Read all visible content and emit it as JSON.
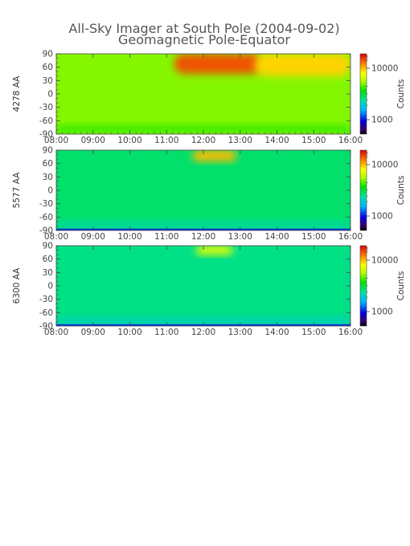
{
  "chart_data": {
    "type": "heatmap",
    "title": "All-Sky Imager at South Pole (2004-09-02)",
    "subtitle": "Geomagnetic Pole-Equator",
    "x_ticks": [
      "08:00",
      "09:00",
      "10:00",
      "11:00",
      "12:00",
      "13:00",
      "14:00",
      "15:00",
      "16:00"
    ],
    "x_range_hours": [
      8,
      16
    ],
    "y_ticks": [
      90,
      60,
      30,
      0,
      -30,
      -60,
      -90
    ],
    "y_range": [
      -90,
      90
    ],
    "colorbar_label": "Counts",
    "colorbar_ticks": [
      "10000",
      "1000"
    ],
    "colorbar_scale": "log",
    "panels": [
      {
        "ylabel": "4278 AA",
        "background_level": 0.63,
        "features": [
          {
            "t_start": 11.2,
            "t_end": 13.6,
            "lat_min": 45,
            "lat_max": 90,
            "level": 0.92
          },
          {
            "t_start": 13.4,
            "t_end": 16.0,
            "lat_min": 40,
            "lat_max": 90,
            "level": 0.8
          }
        ]
      },
      {
        "ylabel": "5577 AA",
        "background_level": 0.46,
        "features": [
          {
            "t_start": 11.7,
            "t_end": 12.9,
            "lat_min": 65,
            "lat_max": 90,
            "level": 0.82
          }
        ]
      },
      {
        "ylabel": "6300 AA",
        "background_level": 0.44,
        "features": [
          {
            "t_start": 11.8,
            "t_end": 12.8,
            "lat_min": 70,
            "lat_max": 90,
            "level": 0.74
          }
        ]
      }
    ]
  }
}
